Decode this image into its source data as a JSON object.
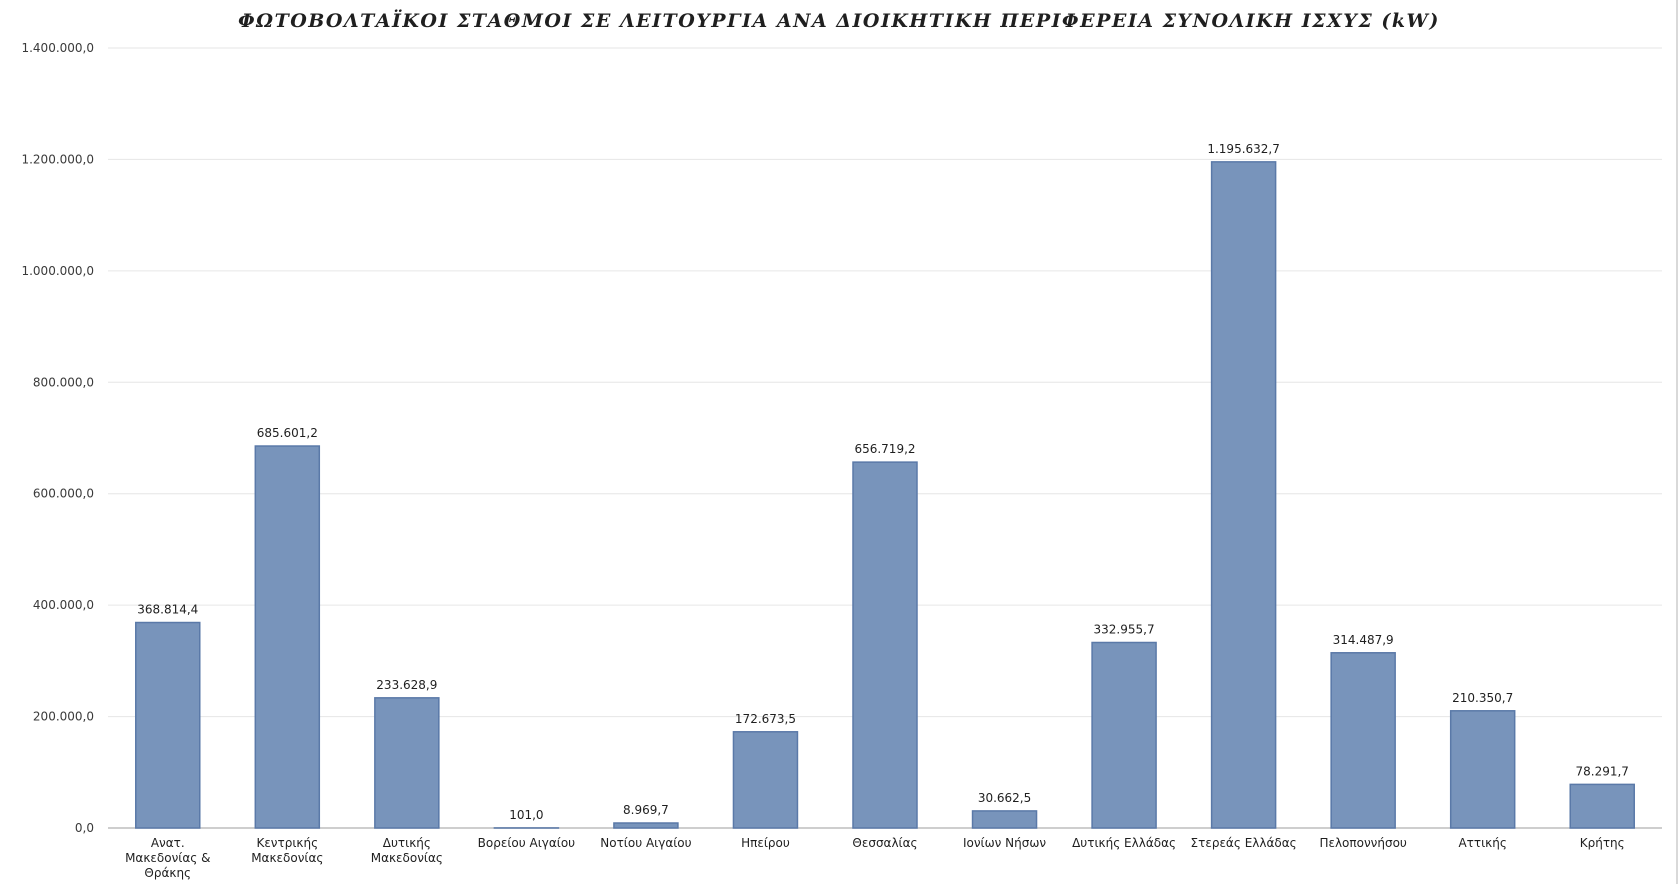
{
  "chart_data": {
    "type": "bar",
    "title": "ΦΩΤΟΒΟΛΤΑΪΚΟΙ ΣΤΑΘΜΟΙ ΣΕ ΛΕΙΤΟΥΡΓΙΑ ΑΝΑ ΔΙΟΙΚΗΤΙΚΗ ΠΕΡΙΦΕΡΕΙΑ ΣΥΝΟΛΙΚΗ ΙΣΧΥΣ (kW)",
    "xlabel": "",
    "ylabel": "",
    "ylim": [
      0,
      1400000
    ],
    "yticks": [
      0,
      200000,
      400000,
      600000,
      800000,
      1000000,
      1200000,
      1400000
    ],
    "ytick_labels": [
      "0,0",
      "200.000,0",
      "400.000,0",
      "600.000,0",
      "800.000,0",
      "1.000.000,0",
      "1.200.000,0",
      "1.400.000,0"
    ],
    "grid": true,
    "legend": "none",
    "bar_color": "#7894BB",
    "bar_edge_color": "#5A79A8",
    "categories": [
      [
        "Ανατ.",
        "Μακεδονίας &",
        "Θράκης"
      ],
      [
        "Κεντρικής",
        "Μακεδονίας"
      ],
      [
        "Δυτικής",
        "Μακεδονίας"
      ],
      [
        "Βορείου Αιγαίου"
      ],
      [
        "Νοτίου Αιγαίου"
      ],
      [
        "Ηπείρου"
      ],
      [
        "Θεσσαλίας"
      ],
      [
        "Ιονίων Νήσων"
      ],
      [
        "Δυτικής Ελλάδας"
      ],
      [
        "Στερεάς Ελλάδας"
      ],
      [
        "Πελοποννήσου"
      ],
      [
        "Αττικής"
      ],
      [
        "Κρήτης"
      ]
    ],
    "values": [
      368814.4,
      685601.2,
      233628.9,
      101.0,
      8969.7,
      172673.5,
      656719.2,
      30662.5,
      332955.7,
      1195632.7,
      314487.9,
      210350.7,
      78291.7
    ],
    "data_labels": [
      "368.814,4",
      "685.601,2",
      "233.628,9",
      "101,0",
      "8.969,7",
      "172.673,5",
      "656.719,2",
      "30.662,5",
      "332.955,7",
      "1.195.632,7",
      "314.487,9",
      "210.350,7",
      "78.291,7"
    ]
  }
}
